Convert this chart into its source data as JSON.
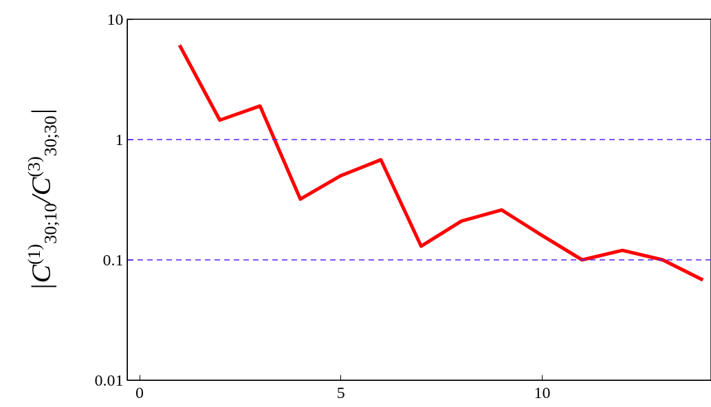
{
  "chart_data": {
    "type": "line",
    "ylabel": "|C$^{(1)}$$_{30;10}$/C$^{(3)}$$_{30;30}$|",
    "x": [
      1,
      2,
      3,
      4,
      5,
      6,
      7,
      8,
      9,
      10,
      11,
      12,
      13,
      14
    ],
    "series": [
      {
        "color": "#ff0000",
        "values": [
          6.1,
          1.45,
          1.9,
          0.32,
          0.5,
          0.68,
          0.13,
          0.21,
          0.26,
          0.16,
          0.1,
          0.12,
          0.1,
          0.068
        ]
      }
    ],
    "log": "y",
    "xlim": [
      -0.3,
      14.2
    ],
    "xticks": [
      0,
      5,
      10
    ],
    "ylim": [
      0.01,
      10
    ],
    "yticks": [
      0.01,
      0.1,
      1,
      10
    ],
    "grid": false,
    "legend": false,
    "marker": "none",
    "line_style": "solid",
    "ref_lines": [
      {
        "axis": "y",
        "value": 1,
        "color": "#5522ff",
        "line_style": "dashed"
      },
      {
        "axis": "y",
        "value": 0.1,
        "color": "#5522ff",
        "line_style": "dashed"
      }
    ]
  }
}
